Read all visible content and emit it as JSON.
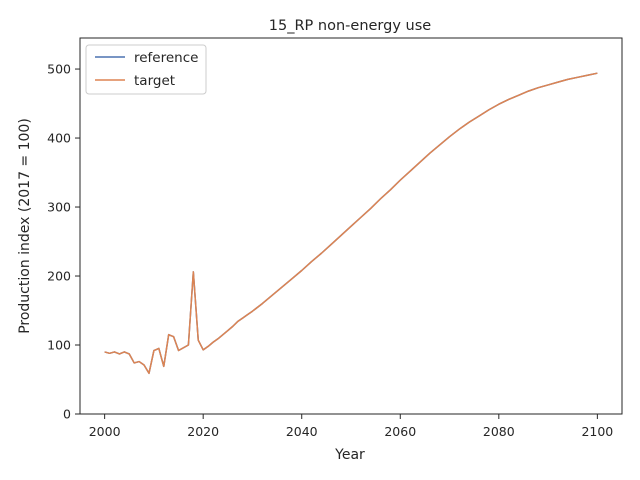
{
  "chart_data": {
    "type": "line",
    "title": "15_RP non-energy use",
    "xlabel": "Year",
    "ylabel": "Production index (2017 = 100)",
    "xlim": [
      1995,
      2105
    ],
    "ylim": [
      0,
      545
    ],
    "xticks": [
      2000,
      2020,
      2040,
      2060,
      2080,
      2100
    ],
    "yticks": [
      0,
      100,
      200,
      300,
      400,
      500
    ],
    "grid": false,
    "legend_position": "upper-left",
    "series": [
      {
        "name": "reference",
        "color": "#4c72b0",
        "x": [
          2000,
          2001,
          2002,
          2003,
          2004,
          2005,
          2006,
          2007,
          2008,
          2009,
          2010,
          2011,
          2012,
          2013,
          2014,
          2015,
          2016,
          2017,
          2018,
          2019,
          2020,
          2021,
          2022,
          2023,
          2024,
          2025,
          2026,
          2027,
          2028,
          2029,
          2030,
          2032,
          2034,
          2036,
          2038,
          2040,
          2042,
          2044,
          2046,
          2048,
          2050,
          2052,
          2054,
          2056,
          2058,
          2060,
          2062,
          2064,
          2066,
          2068,
          2070,
          2072,
          2074,
          2076,
          2078,
          2080,
          2082,
          2084,
          2086,
          2088,
          2090,
          2092,
          2094,
          2096,
          2098,
          2100
        ],
        "y": [
          90,
          88,
          90,
          87,
          90,
          87,
          74,
          76,
          71,
          59,
          92,
          95,
          69,
          115,
          112,
          92,
          96,
          100,
          206,
          107,
          93,
          98,
          104,
          109,
          115,
          121,
          127,
          134,
          139,
          144,
          149,
          160,
          172,
          184,
          196,
          208,
          221,
          233,
          246,
          259,
          272,
          285,
          298,
          312,
          325,
          339,
          352,
          365,
          378,
          390,
          402,
          413,
          423,
          432,
          441,
          449,
          456,
          462,
          468,
          473,
          477,
          481,
          485,
          488,
          491,
          494
        ]
      },
      {
        "name": "target",
        "color": "#dd8452",
        "x": [
          2000,
          2001,
          2002,
          2003,
          2004,
          2005,
          2006,
          2007,
          2008,
          2009,
          2010,
          2011,
          2012,
          2013,
          2014,
          2015,
          2016,
          2017,
          2018,
          2019,
          2020,
          2021,
          2022,
          2023,
          2024,
          2025,
          2026,
          2027,
          2028,
          2029,
          2030,
          2032,
          2034,
          2036,
          2038,
          2040,
          2042,
          2044,
          2046,
          2048,
          2050,
          2052,
          2054,
          2056,
          2058,
          2060,
          2062,
          2064,
          2066,
          2068,
          2070,
          2072,
          2074,
          2076,
          2078,
          2080,
          2082,
          2084,
          2086,
          2088,
          2090,
          2092,
          2094,
          2096,
          2098,
          2100
        ],
        "y": [
          90,
          88,
          90,
          87,
          90,
          87,
          74,
          76,
          71,
          59,
          92,
          95,
          69,
          115,
          112,
          92,
          96,
          100,
          206,
          107,
          93,
          98,
          104,
          109,
          115,
          121,
          127,
          134,
          139,
          144,
          149,
          160,
          172,
          184,
          196,
          208,
          221,
          233,
          246,
          259,
          272,
          285,
          298,
          312,
          325,
          339,
          352,
          365,
          378,
          390,
          402,
          413,
          423,
          432,
          441,
          449,
          456,
          462,
          468,
          473,
          477,
          481,
          485,
          488,
          491,
          494
        ]
      }
    ]
  }
}
